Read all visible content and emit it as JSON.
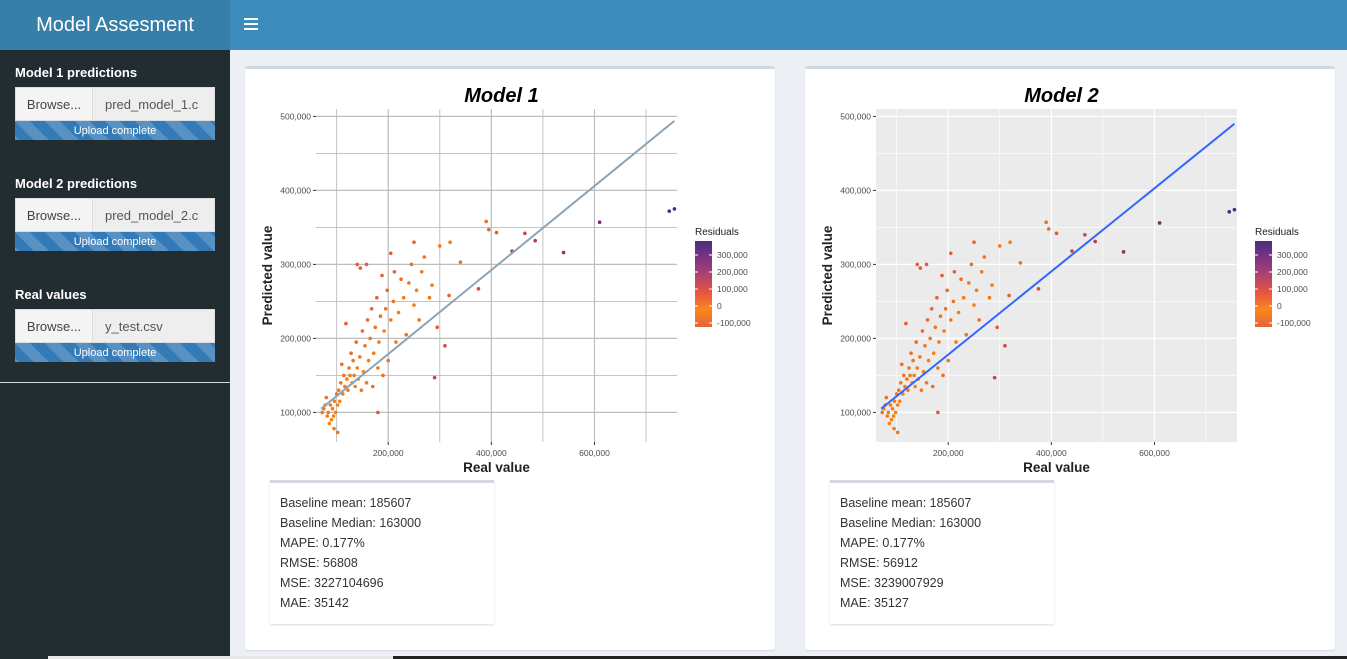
{
  "header": {
    "title": "Model Assesment"
  },
  "sidebar": {
    "inputs": [
      {
        "label": "Model 1 predictions",
        "button": "Browse...",
        "file": "pred_model_1.c",
        "status": "Upload complete"
      },
      {
        "label": "Model 2 predictions",
        "button": "Browse...",
        "file": "pred_model_2.c",
        "status": "Upload complete"
      },
      {
        "label": "Real values",
        "button": "Browse...",
        "file": "y_test.csv",
        "status": "Upload complete"
      }
    ]
  },
  "panels": [
    {
      "stats": [
        "Baseline mean: 185607",
        "Baseline Median: 163000",
        "MAPE: 0.177%",
        "RMSE: 56808",
        "MSE: 3227104696",
        "MAE: 35142"
      ],
      "line_color": "#8ba4b6",
      "background": "white"
    },
    {
      "stats": [
        "Baseline mean: 185607",
        "Baseline Median: 163000",
        "MAPE: 0.177%",
        "RMSE: 56912",
        "MSE: 3239007929",
        "MAE: 35127"
      ],
      "line_color": "#3366ff",
      "background": "grey"
    }
  ],
  "chart_data": [
    {
      "type": "scatter",
      "title": "Model 1",
      "xlabel": "Real value",
      "ylabel": "Predicted value",
      "xlim": [
        60000,
        760000
      ],
      "ylim": [
        60000,
        510000
      ],
      "x_ticks": [
        200000,
        400000,
        600000
      ],
      "x_tick_labels": [
        "200,000",
        "400,000",
        "600,000"
      ],
      "y_ticks": [
        100000,
        200000,
        300000,
        400000,
        500000
      ],
      "y_tick_labels": [
        "100,000",
        "200,000",
        "300,000",
        "400,000",
        "500,000"
      ],
      "grid": true,
      "legend": {
        "title": "Residuals",
        "labels": [
          "300,000",
          "200,000",
          "100,000",
          "0",
          "-100,000"
        ],
        "position": "right"
      },
      "fit_line": {
        "x": [
          70000,
          755000
        ],
        "y": [
          105000,
          494000
        ]
      },
      "points": [
        [
          755000,
          375000
        ],
        [
          745000,
          372000
        ],
        [
          610000,
          357000
        ],
        [
          540000,
          316000
        ],
        [
          485000,
          332000
        ],
        [
          465000,
          342000
        ],
        [
          440000,
          318000
        ],
        [
          410000,
          343000
        ],
        [
          390000,
          358000
        ],
        [
          395000,
          347000
        ],
        [
          375000,
          267000
        ],
        [
          340000,
          303000
        ],
        [
          320000,
          330000
        ],
        [
          318000,
          258000
        ],
        [
          300000,
          325000
        ],
        [
          295000,
          215000
        ],
        [
          290000,
          147000
        ],
        [
          310000,
          190000
        ],
        [
          285000,
          272000
        ],
        [
          280000,
          255000
        ],
        [
          270000,
          310000
        ],
        [
          265000,
          290000
        ],
        [
          260000,
          225000
        ],
        [
          255000,
          265000
        ],
        [
          250000,
          245000
        ],
        [
          245000,
          300000
        ],
        [
          240000,
          275000
        ],
        [
          235000,
          205000
        ],
        [
          230000,
          255000
        ],
        [
          225000,
          280000
        ],
        [
          220000,
          235000
        ],
        [
          215000,
          195000
        ],
        [
          212000,
          290000
        ],
        [
          210000,
          250000
        ],
        [
          205000,
          225000
        ],
        [
          200000,
          170000
        ],
        [
          198000,
          265000
        ],
        [
          195000,
          240000
        ],
        [
          192000,
          210000
        ],
        [
          190000,
          150000
        ],
        [
          188000,
          285000
        ],
        [
          185000,
          230000
        ],
        [
          182000,
          195000
        ],
        [
          180000,
          160000
        ],
        [
          178000,
          255000
        ],
        [
          175000,
          215000
        ],
        [
          172000,
          180000
        ],
        [
          170000,
          135000
        ],
        [
          168000,
          240000
        ],
        [
          165000,
          200000
        ],
        [
          162000,
          170000
        ],
        [
          160000,
          225000
        ],
        [
          158000,
          140000
        ],
        [
          155000,
          190000
        ],
        [
          152000,
          155000
        ],
        [
          150000,
          210000
        ],
        [
          148000,
          130000
        ],
        [
          145000,
          175000
        ],
        [
          142000,
          145000
        ],
        [
          140000,
          300000
        ],
        [
          140000,
          160000
        ],
        [
          138000,
          195000
        ],
        [
          136000,
          135000
        ],
        [
          134000,
          150000
        ],
        [
          132000,
          170000
        ],
        [
          130000,
          140000
        ],
        [
          128000,
          180000
        ],
        [
          126000,
          150000
        ],
        [
          124000,
          160000
        ],
        [
          122000,
          130000
        ],
        [
          120000,
          145000
        ],
        [
          118000,
          220000
        ],
        [
          116000,
          135000
        ],
        [
          114000,
          150000
        ],
        [
          112000,
          125000
        ],
        [
          110000,
          165000
        ],
        [
          108000,
          140000
        ],
        [
          106000,
          115000
        ],
        [
          104000,
          130000
        ],
        [
          102000,
          110000
        ],
        [
          100000,
          125000
        ],
        [
          98000,
          100000
        ],
        [
          96000,
          115000
        ],
        [
          94000,
          95000
        ],
        [
          92000,
          105000
        ],
        [
          90000,
          90000
        ],
        [
          88000,
          110000
        ],
        [
          86000,
          85000
        ],
        [
          84000,
          100000
        ],
        [
          82000,
          95000
        ],
        [
          80000,
          120000
        ],
        [
          78000,
          110000
        ],
        [
          75000,
          105000
        ],
        [
          72000,
          100000
        ],
        [
          95000,
          78000
        ],
        [
          102000,
          73000
        ],
        [
          180000,
          100000
        ],
        [
          250000,
          330000
        ],
        [
          205000,
          315000
        ],
        [
          158000,
          300000
        ],
        [
          146000,
          295000
        ]
      ]
    },
    {
      "type": "scatter",
      "title": "Model 2",
      "xlabel": "Real value",
      "ylabel": "Predicted value",
      "xlim": [
        60000,
        760000
      ],
      "ylim": [
        60000,
        510000
      ],
      "x_ticks": [
        200000,
        400000,
        600000
      ],
      "x_tick_labels": [
        "200,000",
        "400,000",
        "600,000"
      ],
      "y_ticks": [
        100000,
        200000,
        300000,
        400000,
        500000
      ],
      "y_tick_labels": [
        "100,000",
        "200,000",
        "300,000",
        "400,000",
        "500,000"
      ],
      "grid": true,
      "legend": {
        "title": "Residuals",
        "labels": [
          "300,000",
          "200,000",
          "100,000",
          "0",
          "-100,000"
        ],
        "position": "right"
      },
      "fit_line": {
        "x": [
          70000,
          755000
        ],
        "y": [
          105000,
          490000
        ]
      },
      "points": [
        [
          755000,
          374000
        ],
        [
          745000,
          371000
        ],
        [
          610000,
          356000
        ],
        [
          540000,
          317000
        ],
        [
          485000,
          331000
        ],
        [
          465000,
          340000
        ],
        [
          440000,
          318000
        ],
        [
          410000,
          342000
        ],
        [
          390000,
          357000
        ],
        [
          395000,
          348000
        ],
        [
          375000,
          267000
        ],
        [
          340000,
          302000
        ],
        [
          320000,
          330000
        ],
        [
          318000,
          258000
        ],
        [
          300000,
          325000
        ],
        [
          295000,
          215000
        ],
        [
          290000,
          147000
        ],
        [
          310000,
          190000
        ],
        [
          285000,
          272000
        ],
        [
          280000,
          255000
        ],
        [
          270000,
          310000
        ],
        [
          265000,
          290000
        ],
        [
          260000,
          225000
        ],
        [
          255000,
          265000
        ],
        [
          250000,
          245000
        ],
        [
          245000,
          300000
        ],
        [
          240000,
          275000
        ],
        [
          235000,
          205000
        ],
        [
          230000,
          255000
        ],
        [
          225000,
          280000
        ],
        [
          220000,
          235000
        ],
        [
          215000,
          195000
        ],
        [
          212000,
          290000
        ],
        [
          210000,
          250000
        ],
        [
          205000,
          225000
        ],
        [
          200000,
          170000
        ],
        [
          198000,
          265000
        ],
        [
          195000,
          240000
        ],
        [
          192000,
          210000
        ],
        [
          190000,
          150000
        ],
        [
          188000,
          285000
        ],
        [
          185000,
          230000
        ],
        [
          182000,
          195000
        ],
        [
          180000,
          160000
        ],
        [
          178000,
          255000
        ],
        [
          175000,
          215000
        ],
        [
          172000,
          180000
        ],
        [
          170000,
          135000
        ],
        [
          168000,
          240000
        ],
        [
          165000,
          200000
        ],
        [
          162000,
          170000
        ],
        [
          160000,
          225000
        ],
        [
          158000,
          140000
        ],
        [
          155000,
          190000
        ],
        [
          152000,
          155000
        ],
        [
          150000,
          210000
        ],
        [
          148000,
          130000
        ],
        [
          145000,
          175000
        ],
        [
          142000,
          145000
        ],
        [
          140000,
          300000
        ],
        [
          140000,
          160000
        ],
        [
          138000,
          195000
        ],
        [
          136000,
          135000
        ],
        [
          134000,
          150000
        ],
        [
          132000,
          170000
        ],
        [
          130000,
          140000
        ],
        [
          128000,
          180000
        ],
        [
          126000,
          150000
        ],
        [
          124000,
          160000
        ],
        [
          122000,
          130000
        ],
        [
          120000,
          145000
        ],
        [
          118000,
          220000
        ],
        [
          116000,
          135000
        ],
        [
          114000,
          150000
        ],
        [
          112000,
          125000
        ],
        [
          110000,
          165000
        ],
        [
          108000,
          140000
        ],
        [
          106000,
          115000
        ],
        [
          104000,
          130000
        ],
        [
          102000,
          110000
        ],
        [
          100000,
          125000
        ],
        [
          98000,
          100000
        ],
        [
          96000,
          115000
        ],
        [
          94000,
          95000
        ],
        [
          92000,
          105000
        ],
        [
          90000,
          90000
        ],
        [
          88000,
          110000
        ],
        [
          86000,
          85000
        ],
        [
          84000,
          100000
        ],
        [
          82000,
          95000
        ],
        [
          80000,
          120000
        ],
        [
          78000,
          110000
        ],
        [
          75000,
          105000
        ],
        [
          72000,
          100000
        ],
        [
          95000,
          78000
        ],
        [
          102000,
          73000
        ],
        [
          180000,
          100000
        ],
        [
          250000,
          330000
        ],
        [
          205000,
          315000
        ],
        [
          158000,
          300000
        ],
        [
          146000,
          295000
        ]
      ]
    }
  ]
}
